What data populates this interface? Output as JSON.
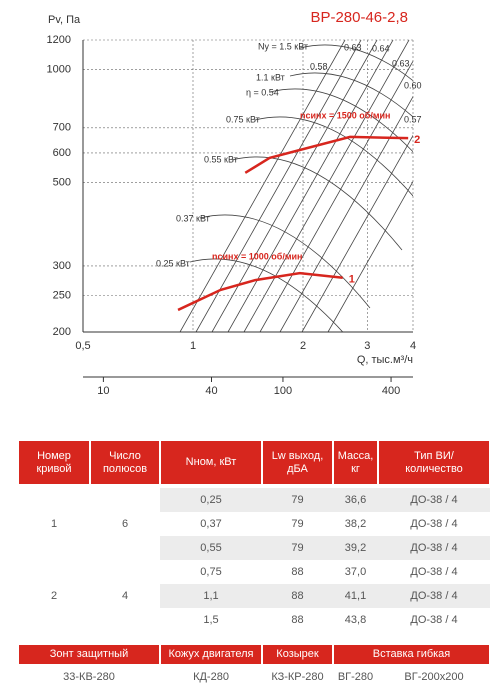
{
  "chart_data": {
    "type": "line",
    "title": "ВР-280-46-2,8",
    "y_label": "Pv, Па",
    "x_label": "Q, тыс.м³/ч",
    "xscale": "log",
    "yscale": "log",
    "xlim": [
      0.5,
      4
    ],
    "ylim": [
      200,
      1200
    ],
    "xticks": [
      {
        "value": 0.5,
        "label": "0,5"
      },
      1,
      2,
      3,
      4
    ],
    "yticks": [
      200,
      250,
      300,
      500,
      600,
      700,
      1000,
      1200
    ],
    "x2lim": [
      7.7,
      530
    ],
    "x2ticks": [
      10,
      40,
      100,
      400
    ],
    "grid": true,
    "series": [
      {
        "name": "1",
        "color": "#d7261e",
        "x": [
          0.91,
          1.19,
          1.48,
          1.96,
          2.57
        ],
        "values": [
          229,
          259,
          275,
          287,
          279
        ]
      },
      {
        "name": "2",
        "color": "#d7261e",
        "x": [
          1.39,
          1.62,
          1.96,
          2.69,
          3.88
        ],
        "values": [
          531,
          582,
          611,
          662,
          657
        ]
      }
    ],
    "annotations": [
      "nсинх = 1500 об/мин",
      "nсинх = 1000 об/мин",
      "Ny = 1.5 кВт",
      "1.1 кВт",
      "η = 0.54",
      "0.75 кВт",
      "0.55 кВт",
      "0.37 кВт",
      "0.25 кВт",
      "0.63",
      "0.64",
      "0.58",
      "0.63",
      "0.60",
      "0.57"
    ]
  },
  "table": {
    "header": [
      "Номер кривой",
      "Число полюсов",
      "Nном, кВт",
      "Lw выход, дБА",
      "Масса, кг",
      "Тип ВИ/ количество"
    ],
    "groups": [
      {
        "curve": "1",
        "poles": "6",
        "rows": [
          [
            "0,25",
            "79",
            "36,6",
            "ДО-38 / 4"
          ],
          [
            "0,37",
            "79",
            "38,2",
            "ДО-38 / 4"
          ],
          [
            "0,55",
            "79",
            "39,2",
            "ДО-38 / 4"
          ]
        ]
      },
      {
        "curve": "2",
        "poles": "4",
        "rows": [
          [
            "0,75",
            "88",
            "37,0",
            "ДО-38 / 4"
          ],
          [
            "1,1",
            "88",
            "41,1",
            "ДО-38 / 4"
          ],
          [
            "1,5",
            "88",
            "43,8",
            "ДО-38 / 4"
          ]
        ]
      }
    ],
    "accessories_header": [
      "Зонт защитный",
      "Кожух двигателя",
      "Козырек",
      "Вставка гибкая"
    ],
    "accessories": [
      "33-КВ-280",
      "КД-280",
      "КЗ-КР-280",
      "ВГ-280",
      "ВГ-200х200"
    ]
  }
}
